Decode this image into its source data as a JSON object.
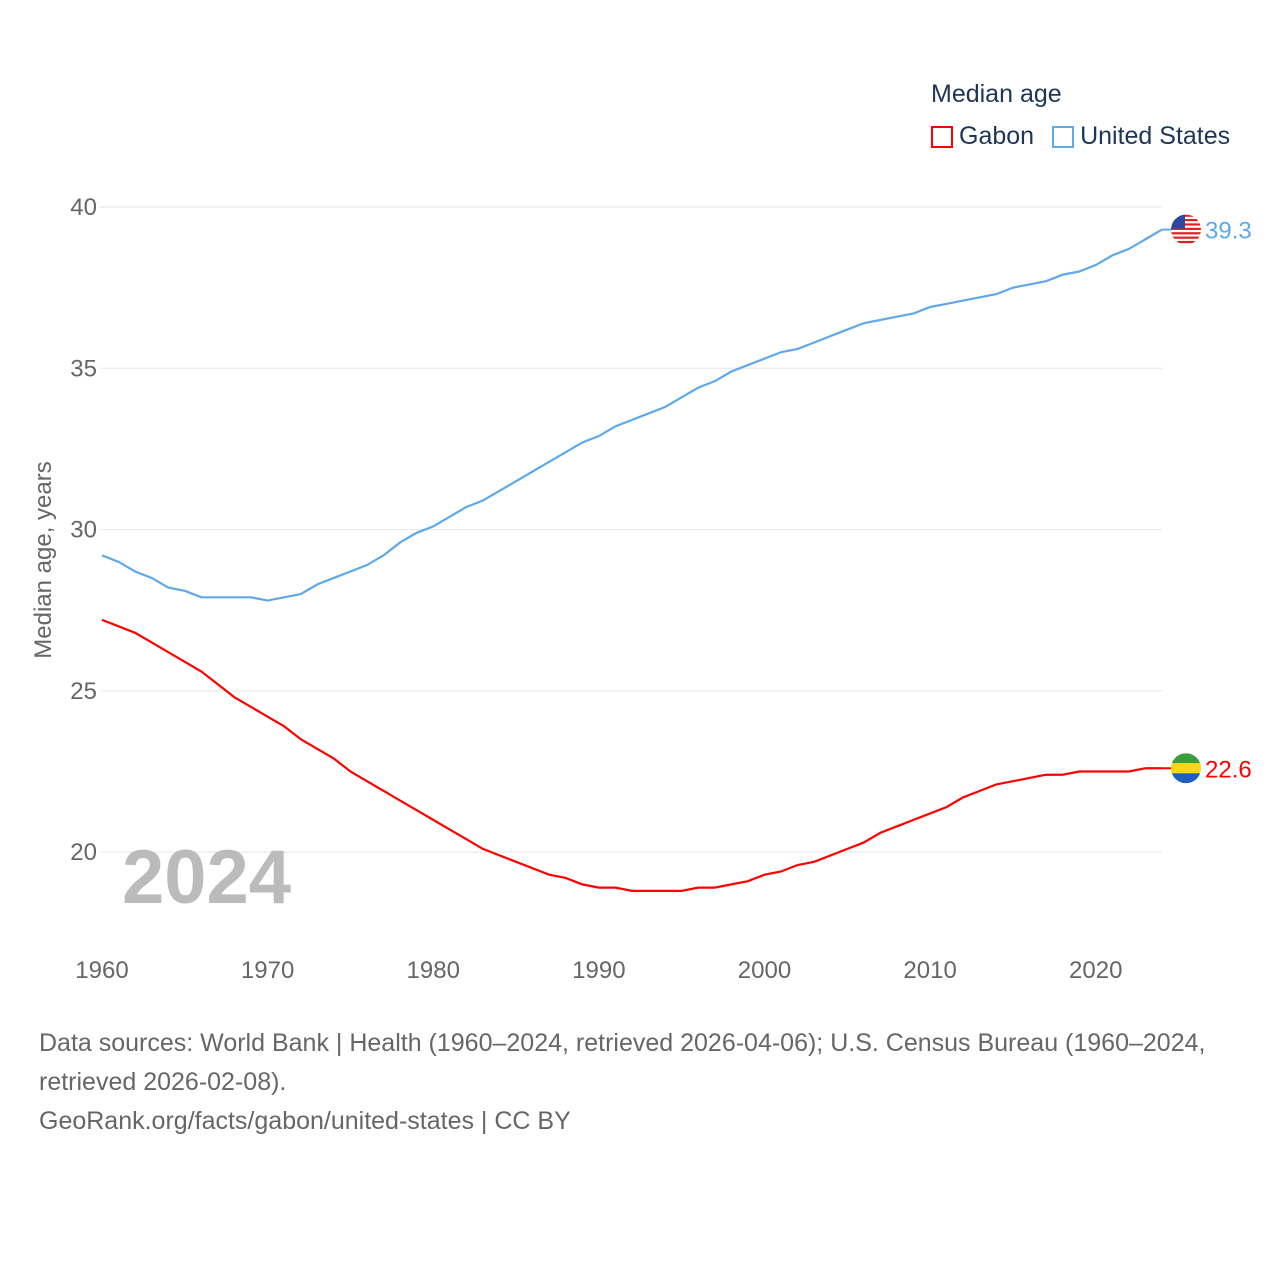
{
  "chart_data": {
    "type": "line",
    "title": "Median age",
    "xlabel": "",
    "ylabel": "Median age, years",
    "year_label": "2024",
    "xlim": [
      1960,
      2024
    ],
    "ylim": [
      17.4,
      40
    ],
    "x_ticks": [
      1960,
      1970,
      1980,
      1990,
      2000,
      2010,
      2020
    ],
    "y_ticks": [
      20,
      25,
      30,
      35,
      40
    ],
    "grid": true,
    "legend_placement": "top-right",
    "series": [
      {
        "name": "Gabon",
        "color": "#ff0000",
        "end_label": "22.6",
        "values": [
          27.2,
          27.0,
          26.8,
          26.5,
          26.2,
          25.9,
          25.6,
          25.2,
          24.8,
          24.5,
          24.2,
          23.9,
          23.5,
          23.2,
          22.9,
          22.5,
          22.2,
          21.9,
          21.6,
          21.3,
          21.0,
          20.7,
          20.4,
          20.1,
          19.9,
          19.7,
          19.5,
          19.3,
          19.2,
          19.0,
          18.9,
          18.9,
          18.8,
          18.8,
          18.8,
          18.8,
          18.9,
          18.9,
          19.0,
          19.1,
          19.3,
          19.4,
          19.6,
          19.7,
          19.9,
          20.1,
          20.3,
          20.6,
          20.8,
          21.0,
          21.2,
          21.4,
          21.7,
          21.9,
          22.1,
          22.2,
          22.3,
          22.4,
          22.4,
          22.5,
          22.5,
          22.5,
          22.5,
          22.6,
          22.6
        ]
      },
      {
        "name": "United States",
        "color": "#5ea8ec",
        "end_label": "39.3",
        "values": [
          29.2,
          29.0,
          28.7,
          28.5,
          28.2,
          28.1,
          27.9,
          27.9,
          27.9,
          27.9,
          27.8,
          27.9,
          28.0,
          28.3,
          28.5,
          28.7,
          28.9,
          29.2,
          29.6,
          29.9,
          30.1,
          30.4,
          30.7,
          30.9,
          31.2,
          31.5,
          31.8,
          32.1,
          32.4,
          32.7,
          32.9,
          33.2,
          33.4,
          33.6,
          33.8,
          34.1,
          34.4,
          34.6,
          34.9,
          35.1,
          35.3,
          35.5,
          35.6,
          35.8,
          36.0,
          36.2,
          36.4,
          36.5,
          36.6,
          36.7,
          36.9,
          37.0,
          37.1,
          37.2,
          37.3,
          37.5,
          37.6,
          37.7,
          37.9,
          38.0,
          38.2,
          38.5,
          38.7,
          39.0,
          39.3
        ]
      }
    ]
  },
  "footer": {
    "sources": "Data sources: World Bank | Health (1960–2024, retrieved 2026-04-06); U.S. Census Bureau (1960–2024, retrieved 2026-02-08).",
    "credit": "GeoRank.org/facts/gabon/united-states | CC BY"
  }
}
